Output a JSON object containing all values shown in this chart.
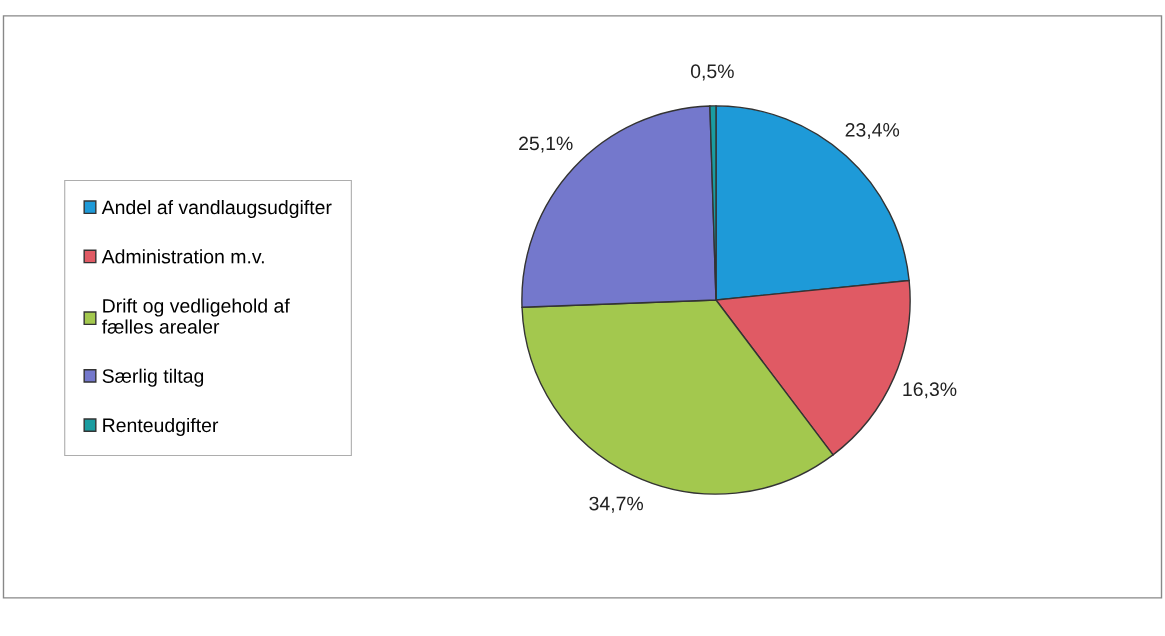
{
  "chart_data": {
    "type": "pie",
    "categories": [
      "Andel af vandlaugsudgifter",
      "Administration m.v.",
      "Drift og vedligehold af fælles arealer",
      "Særlig tiltag",
      "Renteudgifter"
    ],
    "values": [
      23.4,
      16.3,
      34.7,
      25.1,
      0.5
    ],
    "value_labels": [
      "23,4%",
      "16,3%",
      "34,7%",
      "25,1%",
      "0,5%"
    ],
    "colors": [
      "#1e9ad8",
      "#e05a64",
      "#a3c84e",
      "#7478cc",
      "#1a9ca0"
    ],
    "legend": "left"
  }
}
